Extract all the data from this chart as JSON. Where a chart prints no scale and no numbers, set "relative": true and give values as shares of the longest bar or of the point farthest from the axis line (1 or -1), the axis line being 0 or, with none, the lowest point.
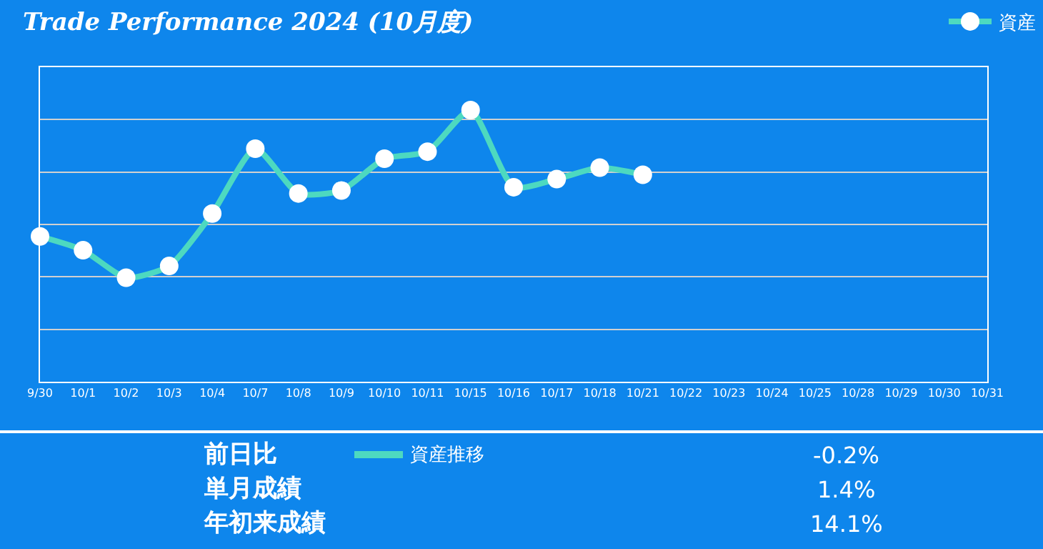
{
  "chart_data": [
    {
      "type": "line",
      "title": "Trade Performance 2024 (10月度)",
      "relative": true,
      "categories": [
        "9/30",
        "10/1",
        "10/2",
        "10/3",
        "10/4",
        "10/7",
        "10/8",
        "10/9",
        "10/10",
        "10/11",
        "10/15",
        "10/16",
        "10/17",
        "10/18",
        "10/21",
        "10/22",
        "10/23",
        "10/24",
        "10/25",
        "10/28",
        "10/29",
        "10/30",
        "10/31"
      ],
      "series": [
        {
          "name": "資産",
          "color": "#4dd9c0",
          "values": [
            0.535,
            0.484,
            0.383,
            0.426,
            0.619,
            0.858,
            0.693,
            0.704,
            0.821,
            0.847,
            1,
            0.716,
            0.746,
            0.788,
            0.762,
            null,
            null,
            null,
            null,
            null,
            null,
            null,
            null
          ]
        }
      ],
      "marker": "circle",
      "line_style": "solid",
      "grid": "y",
      "legend": "top right"
    },
    {
      "type": "other",
      "annotations": [
        "前日比",
        "資産推移",
        "-0.2%",
        "単月成績",
        "1.4%",
        "年初来成績",
        "14.1%"
      ]
    }
  ]
}
